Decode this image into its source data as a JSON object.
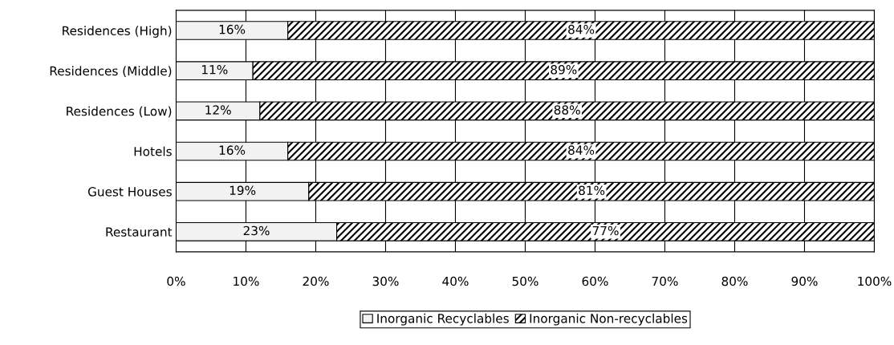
{
  "chart_data": {
    "type": "bar",
    "orientation": "horizontal",
    "stacked": true,
    "categories": [
      "Residences (High)",
      "Residences (Middle)",
      "Residences (Low)",
      "Hotels",
      "Guest Houses",
      "Restaurant"
    ],
    "series": [
      {
        "name": "Inorganic Recyclables",
        "color": "#f2f2f2",
        "values": [
          16,
          11,
          12,
          16,
          19,
          23
        ],
        "value_labels": [
          "16%",
          "11%",
          "12%",
          "16%",
          "19%",
          "23%"
        ]
      },
      {
        "name": "Inorganic Non-recyclables",
        "color": "#000000",
        "values": [
          84,
          89,
          88,
          84,
          81,
          77
        ],
        "value_labels": [
          "84%",
          "89%",
          "88%",
          "84%",
          "81%",
          "77%"
        ]
      }
    ],
    "xlim": [
      0,
      100
    ],
    "xticks": [
      {
        "value": 0,
        "label": "0%"
      },
      {
        "value": 10,
        "label": "10%"
      },
      {
        "value": 20,
        "label": "20%"
      },
      {
        "value": 30,
        "label": "30%"
      },
      {
        "value": 40,
        "label": "40%"
      },
      {
        "value": 50,
        "label": "50%"
      },
      {
        "value": 60,
        "label": "60%"
      },
      {
        "value": 70,
        "label": "70%"
      },
      {
        "value": 80,
        "label": "80%"
      },
      {
        "value": 90,
        "label": "90%"
      },
      {
        "value": 100,
        "label": "100%"
      }
    ],
    "grid": "x",
    "legend": "bottom"
  }
}
